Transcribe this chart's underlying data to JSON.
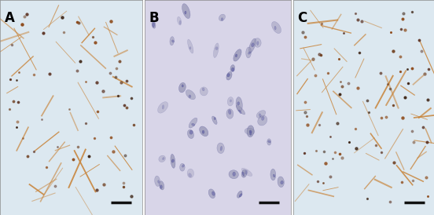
{
  "figure_width": 5.52,
  "figure_height": 2.74,
  "dpi": 100,
  "bg_color": "#ffffff",
  "panel_labels": [
    "A",
    "B",
    "C"
  ],
  "label_fontsize": 12,
  "label_color": "black",
  "panel_A_bg": "#dce8f0",
  "panel_B_bg": "#d8d5e8",
  "panel_C_bg": "#dce8f0",
  "scale_bar_color": "#111111",
  "scale_bar_thickness": 2.5,
  "panel_border_color": "#888888",
  "seed_A": 42,
  "seed_B": 99,
  "seed_C": 77,
  "num_cells_A": 60,
  "num_cells_B": 45,
  "num_cells_C": 80,
  "num_fibers_A": 35,
  "num_fibers_C": 45,
  "fiber_color_A": "#c8843a",
  "fiber_color_C": "#c8843a",
  "nucleus_edge_color_B": "#303070"
}
